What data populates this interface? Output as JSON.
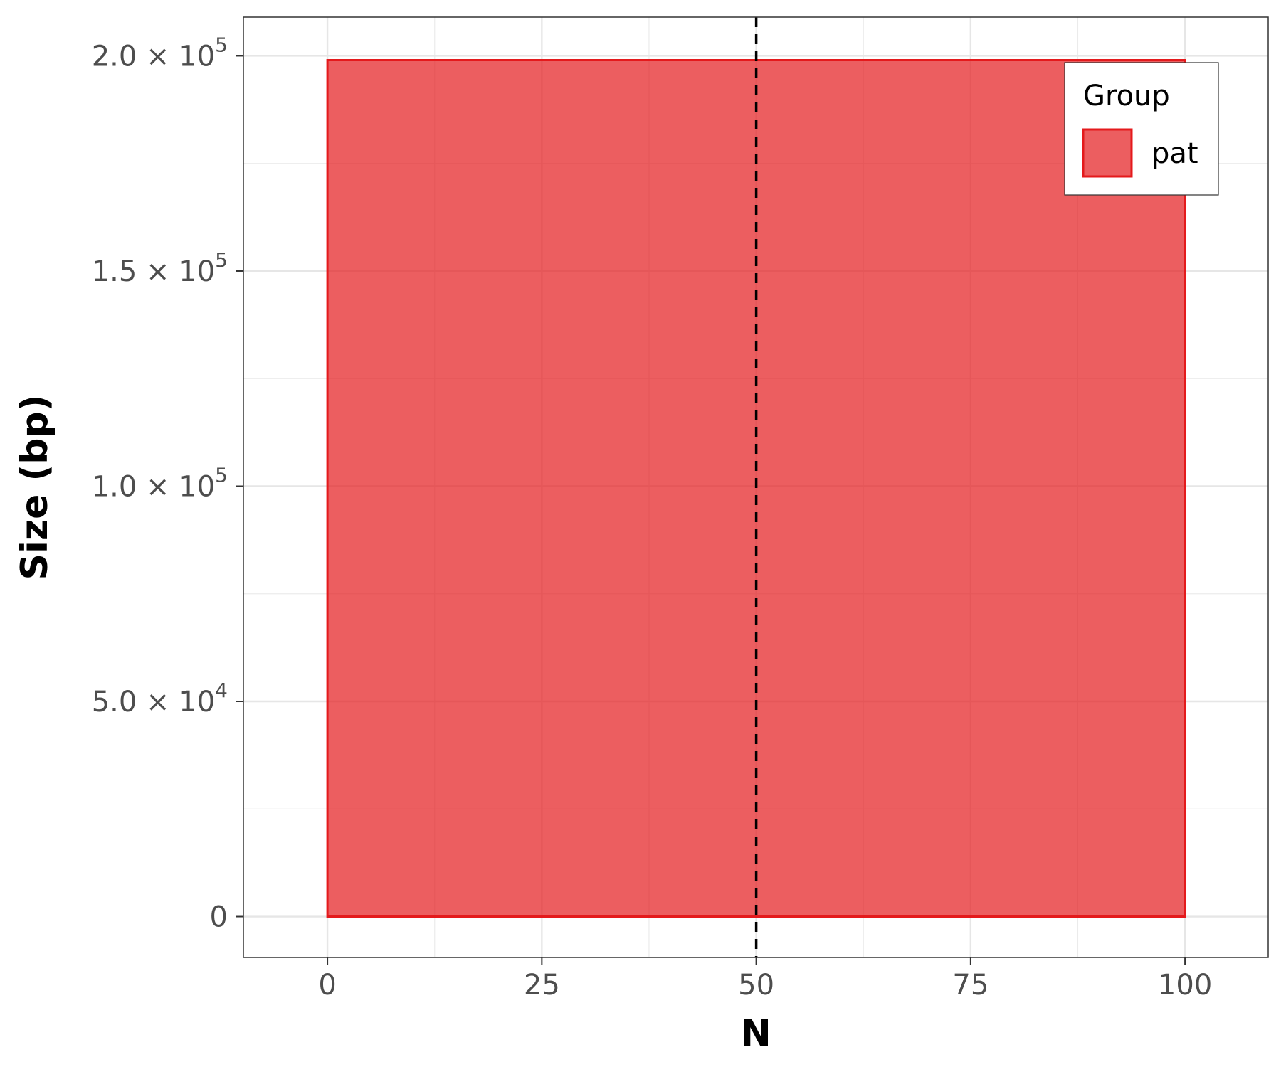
{
  "chart_data": {
    "type": "area",
    "x": [
      0,
      100
    ],
    "series": [
      {
        "name": "pat",
        "values": [
          199000,
          199000
        ],
        "fill": "#E41A1C",
        "fill_opacity": 0.7,
        "stroke": "#E41A1C"
      }
    ],
    "xlabel": "N",
    "ylabel": "Size (bp)",
    "xlim": [
      -9.8,
      109.7
    ],
    "ylim": [
      -9500,
      209000
    ],
    "x_ticks": [
      0,
      25,
      50,
      75,
      100
    ],
    "x_tick_labels": [
      "0",
      "25",
      "50",
      "75",
      "100"
    ],
    "y_ticks": [
      0,
      50000,
      100000,
      150000,
      200000
    ],
    "y_tick_labels": [
      {
        "mantissa": "0",
        "times": "",
        "base": "",
        "exp": ""
      },
      {
        "mantissa": "5.0",
        "times": "×",
        "base": "10",
        "exp": "4"
      },
      {
        "mantissa": "1.0",
        "times": "×",
        "base": "10",
        "exp": "5"
      },
      {
        "mantissa": "1.5",
        "times": "×",
        "base": "10",
        "exp": "5"
      },
      {
        "mantissa": "2.0",
        "times": "×",
        "base": "10",
        "exp": "5"
      }
    ],
    "reference_line": {
      "x": 50,
      "style": "dashed",
      "color": "#000000"
    },
    "grid": true,
    "legend": {
      "title": "Group",
      "placement": "top-right",
      "entries": [
        "pat"
      ]
    }
  }
}
